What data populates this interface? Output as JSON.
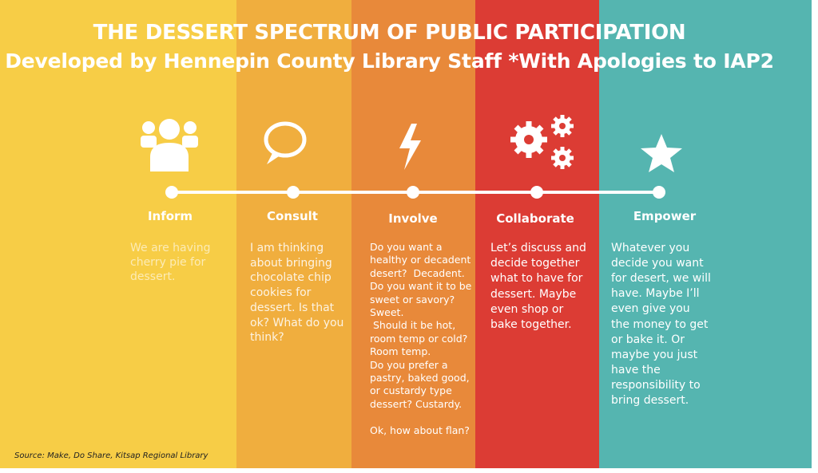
{
  "header": {
    "title": "THE DESSERT SPECTRUM OF PUBLIC PARTICIPATION",
    "subtitle": "Developed by Hennepin County Library Staff *With Apologies to IAP2"
  },
  "stages": [
    {
      "label": "Inform",
      "lines": [
        "We are having",
        "cherry pie for",
        "dessert."
      ]
    },
    {
      "label": "Consult",
      "lines": [
        "I am thinking",
        "about bringing",
        "chocolate chip",
        "cookies for",
        "dessert. Is that",
        "ok? What do you",
        "think?"
      ]
    },
    {
      "label": "Involve",
      "lines": [
        "Do you want a",
        "healthy or decadent",
        "desert?  Decadent.",
        "Do you want it to be",
        "sweet or savory?",
        "Sweet.",
        " Should it be hot,",
        "room temp or cold?",
        "Room temp.",
        "Do you prefer a",
        "pastry, baked good,",
        "or custardy type",
        "dessert? Custardy."
      ],
      "closing": "Ok, how about flan?"
    },
    {
      "label": "Collaborate",
      "lines": [
        "Let’s discuss and",
        "decide together",
        "what to have for",
        "dessert. Maybe",
        "even shop or",
        "bake together."
      ]
    },
    {
      "label": "Empower",
      "lines": [
        "Whatever you",
        "decide you want",
        "for desert, we will",
        "have. Maybe I’ll",
        "even give you",
        "the money to get",
        "or bake it. Or",
        "maybe you just",
        "have the",
        "responsibility to",
        "bring dessert."
      ]
    }
  ],
  "source": "Source: Make, Do Share, Kitsap Regional Library"
}
